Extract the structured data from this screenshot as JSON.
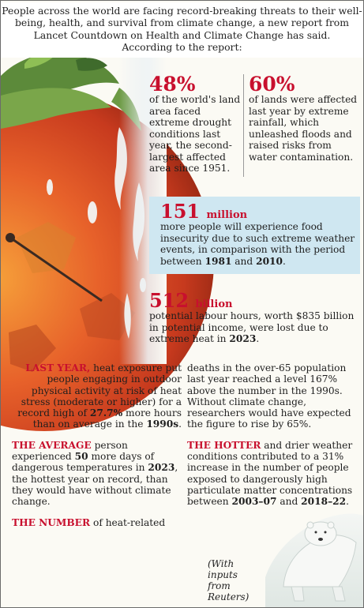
{
  "intro": {
    "line1": "People across the world are facing record-breaking threats to their well-",
    "line2": "being, health, and survival from climate change, a new report from",
    "line3": "Lancet Countdown on Health and Climate Change has said.",
    "line4": "According to the report:"
  },
  "stats": {
    "drought": {
      "value": "48%",
      "text": "of the world's land area faced extreme drought conditions last year, the second-largest affected area since 1951."
    },
    "rainfall": {
      "value": "60%",
      "text": "of lands were affected last year by extreme rainfall, which unleashed floods and raised risks from water contamination."
    },
    "food": {
      "value": "151",
      "unit": "million",
      "text": "more people will experience food insecurity due to such extreme weather events, in comparison with the period between ",
      "period_a": "1981",
      "period_join": " and ",
      "period_b": "2010",
      "period_end": "."
    },
    "labour": {
      "value": "512",
      "unit": "billion",
      "text": "potential labour hours, worth $835 billion in potential income, were lost due to extreme heat in ",
      "year": "2023",
      "end": "."
    }
  },
  "left_column": {
    "last_year": {
      "lead": "LAST YEAR,",
      "text": " heat exposure put people engaging in outdoor physical activity at risk of heat stress (moderate or higher) for a record high of ",
      "figure": "27.7%",
      "text2": " more hours than on average in the ",
      "decade": "1990s",
      "end": "."
    },
    "average": {
      "lead": "THE AVERAGE",
      "text": " person experienced ",
      "days": "50",
      "text2": " more days of dangerous temperatures in ",
      "year": "2023",
      "text3": ", the hottest year on record, than they would have without climate change."
    },
    "number": {
      "lead": "THE NUMBER",
      "text": " of heat-related"
    }
  },
  "right_column": {
    "deaths": {
      "text": "deaths in the over-65 population last year reached a level 167% above the number in the 1990s. Without climate change, researchers would have expected the figure to rise by 65%."
    },
    "hotter": {
      "lead": "THE HOTTER",
      "text": " and drier weather conditions contributed to a 31% increase in the number of people exposed to dangerously high particulate matter concentrations between ",
      "period_a": "2003–07",
      "join": " and ",
      "period_b": "2018–22",
      "end": "."
    }
  },
  "credit": "(With inputs from Reuters)",
  "colors": {
    "accent": "#c8102e",
    "panel": "#cfe7f1"
  }
}
